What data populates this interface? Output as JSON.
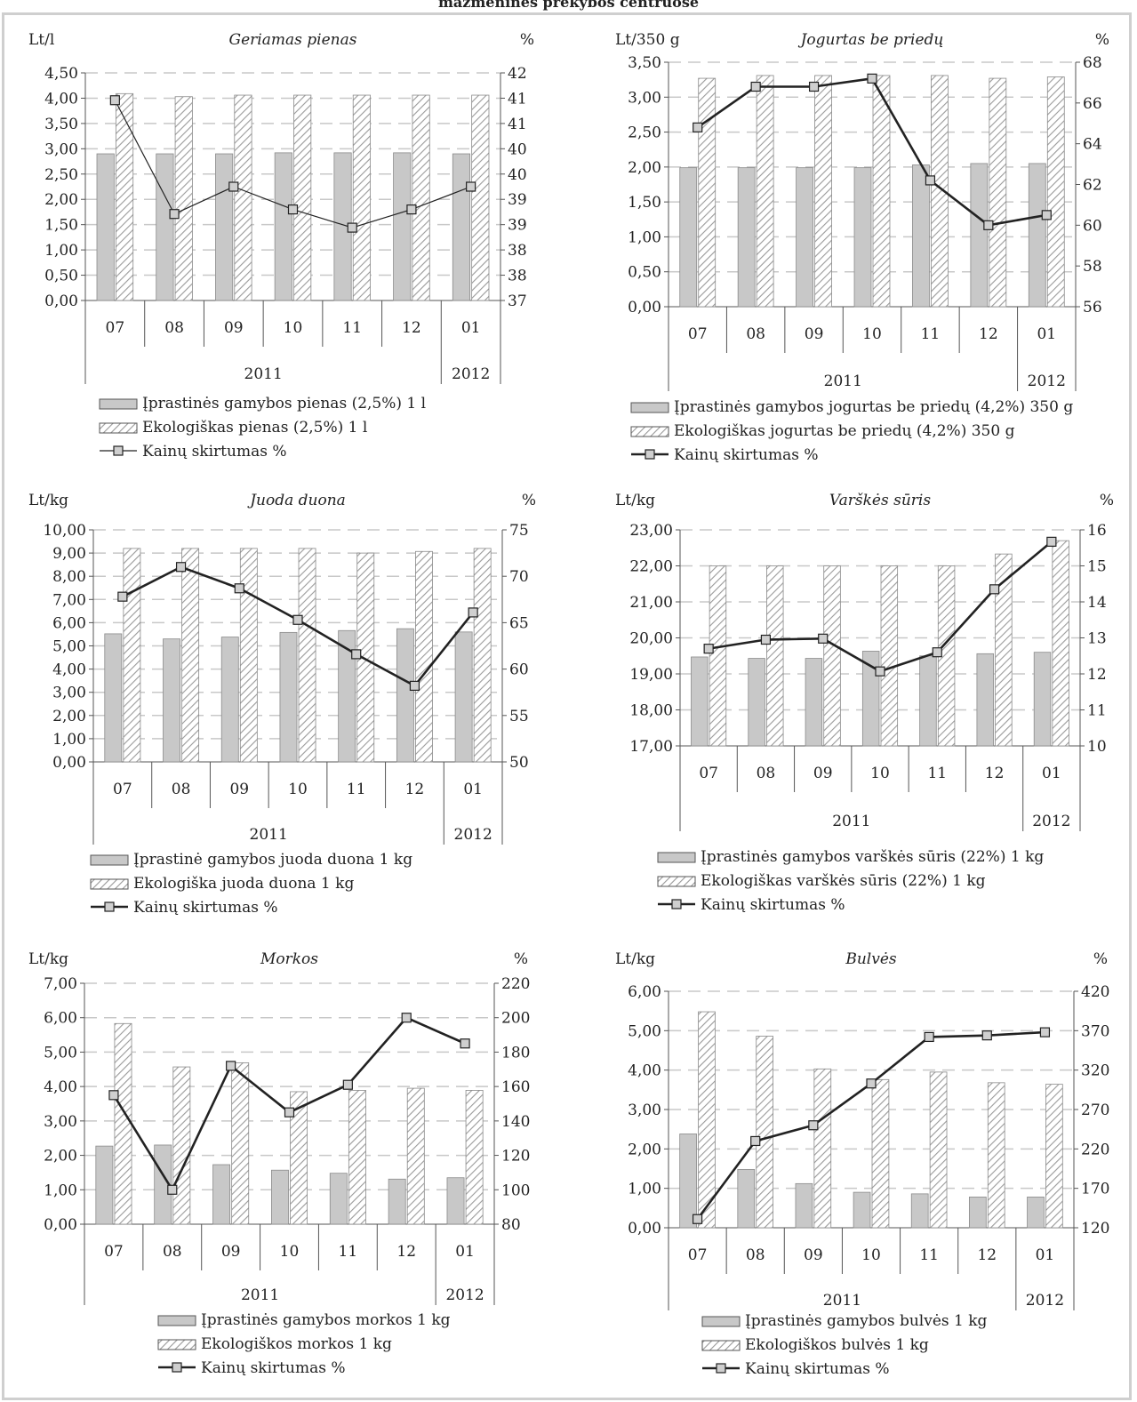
{
  "page": {
    "title": "mažmeninės prekybos centruose"
  },
  "colors": {
    "conventional_bar": "#c8c8c8",
    "organic_bar_hatch": "#9a9a9a",
    "line": "#222222",
    "marker_fill": "#cfcfcf",
    "grid": "#c8c8c8"
  },
  "chart_data": [
    {
      "type": "bar",
      "title": "Geriamas pienas",
      "left_unit": "Lt/l",
      "right_unit": "%",
      "categories": [
        "07",
        "08",
        "09",
        "10",
        "11",
        "12",
        "01"
      ],
      "years": [
        {
          "label": "2011",
          "span": 6
        },
        {
          "label": "2012",
          "span": 1
        }
      ],
      "y_ticks": [
        "0,00",
        "0,50",
        "1,00",
        "1,50",
        "2,00",
        "2,50",
        "3,00",
        "3,50",
        "4,00",
        "4,50"
      ],
      "y2_ticks": [
        "37",
        "38",
        "38",
        "39",
        "39",
        "40",
        "40",
        "41",
        "41",
        "42"
      ],
      "ylim": [
        0,
        4.5
      ],
      "y2lim": [
        37,
        42
      ],
      "series": [
        {
          "name": "Įprastinės gamybos pienas (2,5%) 1 l",
          "kind": "bar",
          "values": [
            2.9,
            2.9,
            2.9,
            2.92,
            2.92,
            2.92,
            2.9
          ]
        },
        {
          "name": "Ekologiškas pienas (2,5%) 1 l",
          "kind": "hatched-bar",
          "values": [
            4.09,
            4.03,
            4.06,
            4.06,
            4.06,
            4.06,
            4.06
          ]
        },
        {
          "name": "Kainų skirtumas %",
          "kind": "line",
          "axis": "right",
          "values": [
            41.4,
            38.9,
            39.5,
            39.0,
            38.6,
            39.0,
            39.5
          ]
        }
      ],
      "line_width": 1
    },
    {
      "type": "bar",
      "title": "Jogurtas be priedų",
      "left_unit": "Lt/350 g",
      "right_unit": "%",
      "categories": [
        "07",
        "08",
        "09",
        "10",
        "11",
        "12",
        "01"
      ],
      "years": [
        {
          "label": "2011",
          "span": 6
        },
        {
          "label": "2012",
          "span": 1
        }
      ],
      "y_ticks": [
        "0,00",
        "0,50",
        "1,00",
        "1,50",
        "2,00",
        "2,50",
        "3,00",
        "3,50"
      ],
      "y2_ticks": [
        "56",
        "58",
        "60",
        "62",
        "64",
        "66",
        "68"
      ],
      "ylim": [
        0,
        3.5
      ],
      "y2lim": [
        56,
        68
      ],
      "series": [
        {
          "name": "Įprastinės gamybos jogurtas be priedų (4,2%) 350 g",
          "kind": "bar",
          "values": [
            1.99,
            1.99,
            1.99,
            1.99,
            2.03,
            2.05,
            2.05
          ]
        },
        {
          "name": "Ekologiškas jogurtas be priedų (4,2%) 350 g",
          "kind": "hatched-bar",
          "values": [
            3.27,
            3.31,
            3.31,
            3.31,
            3.31,
            3.27,
            3.29
          ]
        },
        {
          "name": "Kainų skirtumas %",
          "kind": "line",
          "axis": "right",
          "values": [
            64.8,
            66.8,
            66.8,
            67.2,
            62.2,
            60.0,
            60.5
          ]
        }
      ],
      "line_width": 2
    },
    {
      "type": "bar",
      "title": "Juoda duona",
      "left_unit": "Lt/kg",
      "right_unit": "%",
      "categories": [
        "07",
        "08",
        "09",
        "10",
        "11",
        "12",
        "01"
      ],
      "years": [
        {
          "label": "2011",
          "span": 6
        },
        {
          "label": "2012",
          "span": 1
        }
      ],
      "y_ticks": [
        "0,00",
        "1,00",
        "2,00",
        "3,00",
        "4,00",
        "5,00",
        "6,00",
        "7,00",
        "8,00",
        "9,00",
        "10,00"
      ],
      "y2_ticks": [
        "50",
        "55",
        "60",
        "65",
        "70",
        "75"
      ],
      "ylim": [
        0,
        10
      ],
      "y2lim": [
        50,
        75
      ],
      "series": [
        {
          "name": "Įprastinė gamybos juoda duona 1 kg",
          "kind": "bar",
          "values": [
            5.52,
            5.3,
            5.38,
            5.58,
            5.66,
            5.74,
            5.6
          ]
        },
        {
          "name": "Ekologiška juoda duona 1 kg",
          "kind": "hatched-bar",
          "values": [
            9.2,
            9.2,
            9.2,
            9.2,
            9.0,
            9.07,
            9.2
          ]
        },
        {
          "name": "Kainų skirtumas %",
          "kind": "line",
          "axis": "right",
          "values": [
            67.8,
            71.0,
            68.7,
            65.3,
            61.6,
            58.2,
            66.1
          ]
        }
      ],
      "line_width": 2
    },
    {
      "type": "bar",
      "title": "Varškės sūris",
      "left_unit": "Lt/kg",
      "right_unit": "%",
      "categories": [
        "07",
        "08",
        "09",
        "10",
        "11",
        "12",
        "01"
      ],
      "years": [
        {
          "label": "2011",
          "span": 6
        },
        {
          "label": "2012",
          "span": 1
        }
      ],
      "y_ticks": [
        "17,00",
        "18,00",
        "19,00",
        "20,00",
        "21,00",
        "22,00",
        "23,00"
      ],
      "y2_ticks": [
        "10",
        "11",
        "12",
        "13",
        "14",
        "15",
        "16"
      ],
      "ylim": [
        17,
        23
      ],
      "y2lim": [
        10,
        16
      ],
      "series": [
        {
          "name": "Įprastinės gamybos varškės sūris (22%) 1 kg",
          "kind": "bar",
          "values": [
            19.47,
            19.43,
            19.43,
            19.63,
            19.5,
            19.56,
            19.6
          ]
        },
        {
          "name": "Ekologiškas varškės sūris (22%) 1 kg",
          "kind": "hatched-bar",
          "values": [
            22.0,
            22.0,
            22.0,
            22.0,
            22.0,
            22.33,
            22.7
          ]
        },
        {
          "name": "Kainų skirtumas %",
          "kind": "line",
          "axis": "right",
          "values": [
            12.7,
            12.95,
            12.98,
            12.07,
            12.6,
            14.35,
            15.67
          ]
        }
      ],
      "line_width": 2
    },
    {
      "type": "bar",
      "title": "Morkos",
      "left_unit": "Lt/kg",
      "right_unit": "%",
      "categories": [
        "07",
        "08",
        "09",
        "10",
        "11",
        "12",
        "01"
      ],
      "years": [
        {
          "label": "2011",
          "span": 6
        },
        {
          "label": "2012",
          "span": 1
        }
      ],
      "y_ticks": [
        "0,00",
        "1,00",
        "2,00",
        "3,00",
        "4,00",
        "5,00",
        "6,00",
        "7,00"
      ],
      "y2_ticks": [
        "80",
        "100",
        "120",
        "140",
        "160",
        "180",
        "200",
        "220"
      ],
      "ylim": [
        0,
        7
      ],
      "y2lim": [
        80,
        220
      ],
      "series": [
        {
          "name": "Įprastinės gamybos morkos 1 kg",
          "kind": "bar",
          "values": [
            2.27,
            2.3,
            1.73,
            1.57,
            1.48,
            1.31,
            1.35
          ]
        },
        {
          "name": "Ekologiškos morkos 1 kg",
          "kind": "hatched-bar",
          "values": [
            5.83,
            4.57,
            4.69,
            3.85,
            3.89,
            3.95,
            3.89
          ]
        },
        {
          "name": "Kainų skirtumas %",
          "kind": "line",
          "axis": "right",
          "values": [
            155,
            100,
            172,
            145,
            161,
            200,
            185
          ]
        }
      ],
      "line_width": 2
    },
    {
      "type": "bar",
      "title": "Bulvės",
      "left_unit": "Lt/kg",
      "right_unit": "%",
      "categories": [
        "07",
        "08",
        "09",
        "10",
        "11",
        "12",
        "01"
      ],
      "years": [
        {
          "label": "2011",
          "span": 6
        },
        {
          "label": "2012",
          "span": 1
        }
      ],
      "y_ticks": [
        "0,00",
        "1,00",
        "2,00",
        "3,00",
        "4,00",
        "5,00",
        "6,00"
      ],
      "y2_ticks": [
        "120",
        "170",
        "220",
        "270",
        "320",
        "370",
        "420"
      ],
      "ylim": [
        0,
        6
      ],
      "y2lim": [
        120,
        420
      ],
      "series": [
        {
          "name": "Įprastinės gamybos bulvės 1 kg",
          "kind": "bar",
          "values": [
            2.38,
            1.48,
            1.12,
            0.9,
            0.86,
            0.78,
            0.78
          ]
        },
        {
          "name": "Ekologiškos bulvės 1 kg",
          "kind": "hatched-bar",
          "values": [
            5.48,
            4.86,
            4.03,
            3.76,
            3.95,
            3.68,
            3.64
          ]
        },
        {
          "name": "Kainų skirtumas %",
          "kind": "line",
          "axis": "right",
          "values": [
            131,
            230,
            250,
            303,
            362,
            364,
            368
          ]
        }
      ],
      "line_width": 2
    }
  ]
}
